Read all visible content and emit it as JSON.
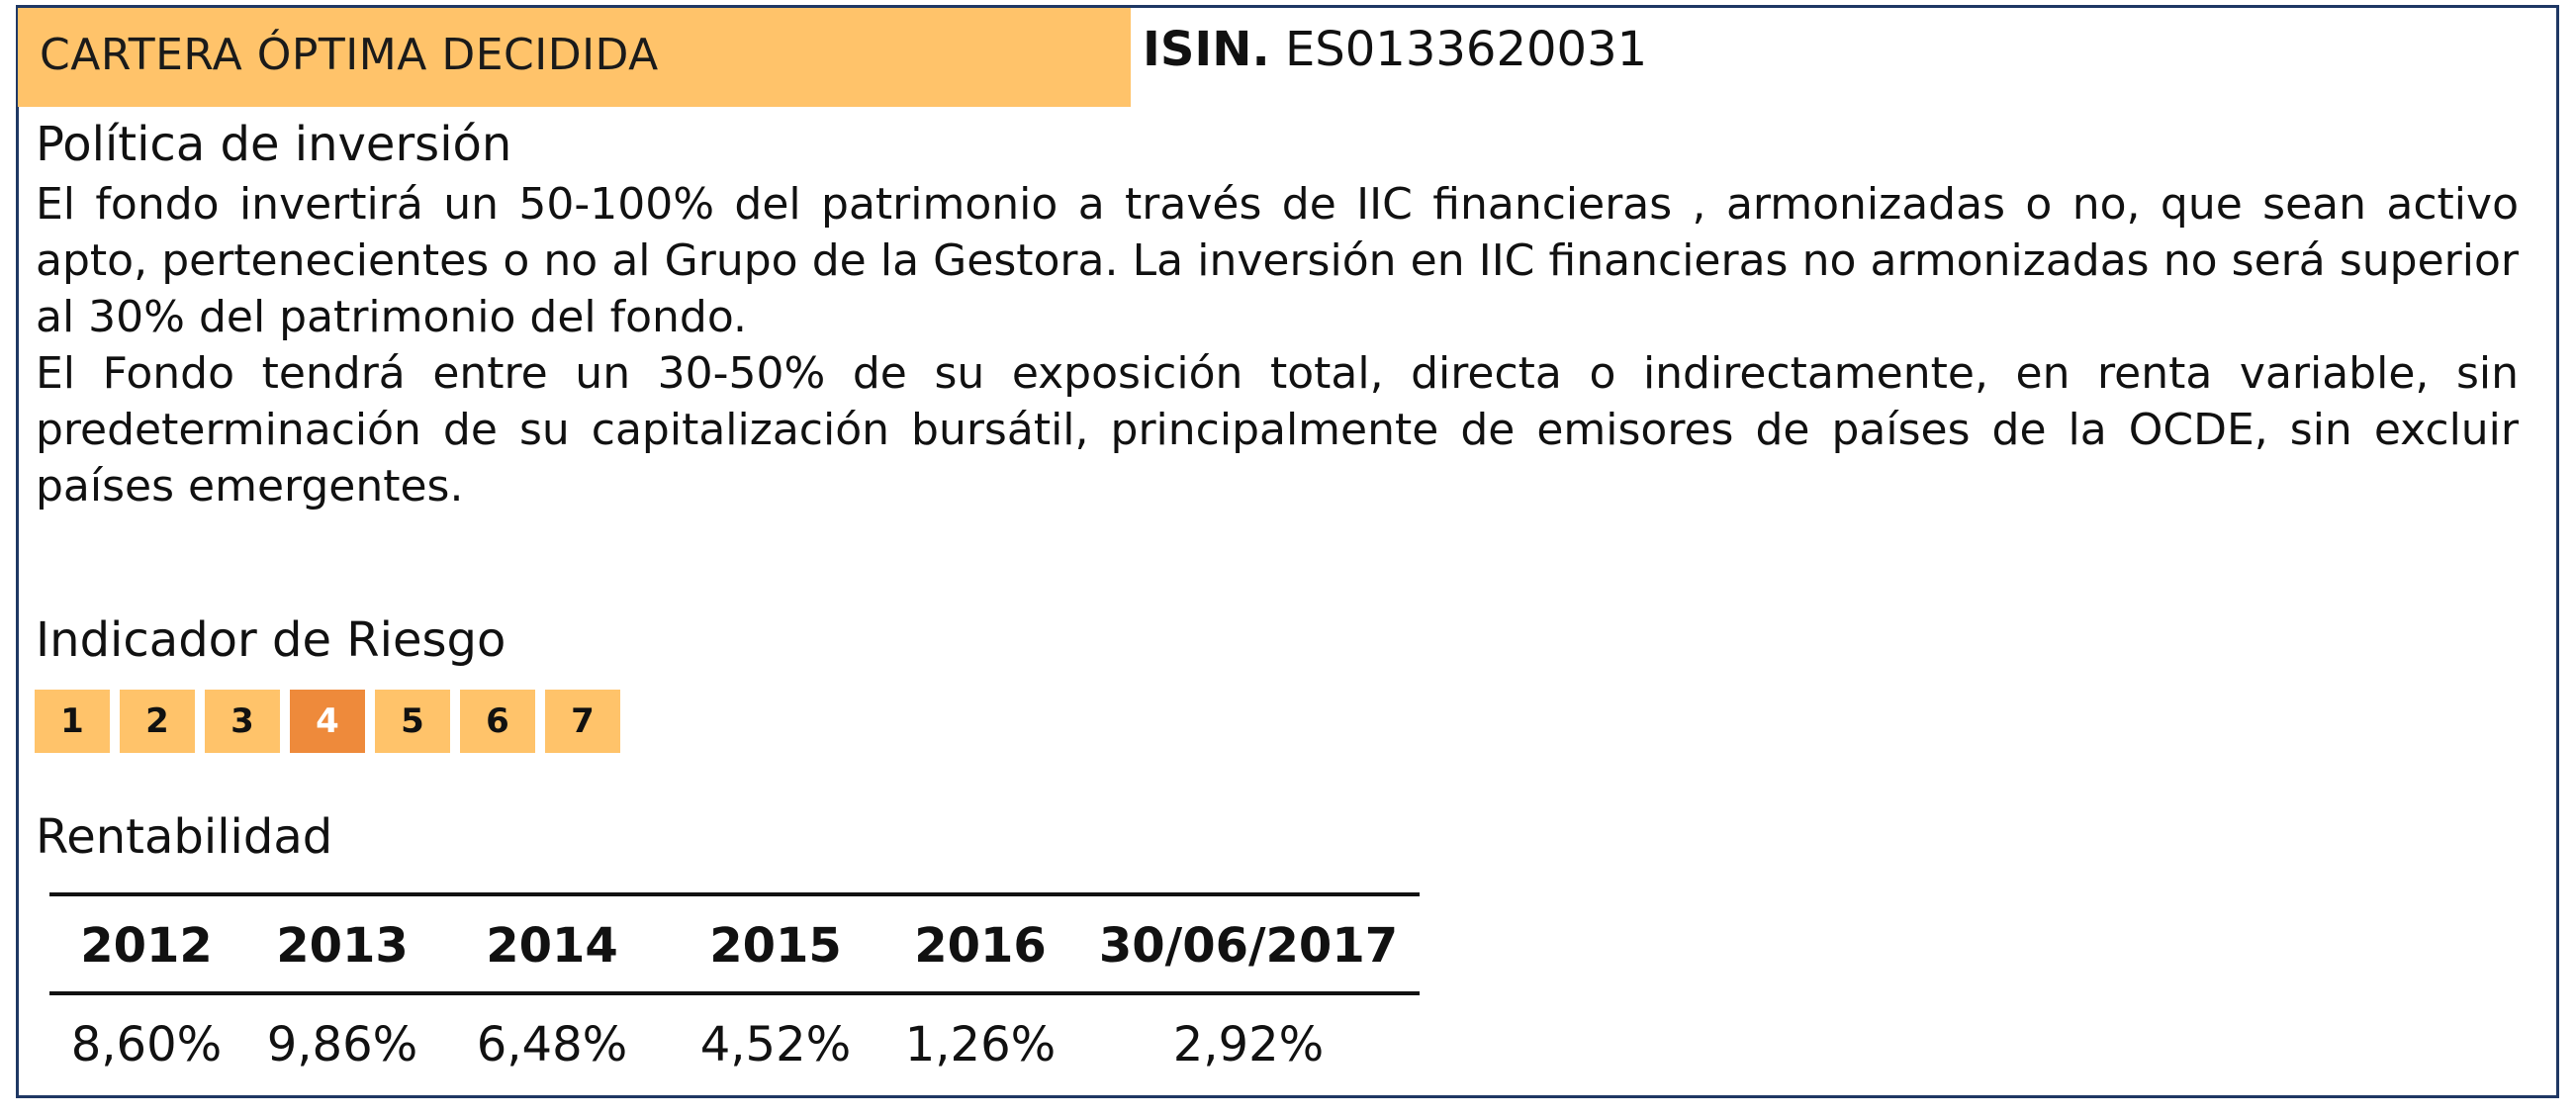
{
  "header": {
    "title": "CARTERA ÓPTIMA DECIDIDA",
    "isin_label": "ISIN.",
    "isin_value": "ES0133620031"
  },
  "policy": {
    "heading": "Política de inversión",
    "paragraph1": "El fondo invertirá un 50-100% del patrimonio a través de IIC financieras , armonizadas o no, que sean activo apto, pertenecientes o no al Grupo de la Gestora. La inversión en IIC financieras no armonizadas no será superior al 30% del patrimonio del fondo.",
    "paragraph2": "El Fondo tendrá entre un 30-50% de su exposición total, directa o indirectamente, en renta variable, sin predeterminación de su capitalización bursátil, principalmente de emisores de países de la OCDE, sin excluir países emergentes."
  },
  "risk": {
    "heading": "Indicador de Riesgo",
    "levels": [
      "1",
      "2",
      "3",
      "4",
      "5",
      "6",
      "7"
    ],
    "selected": "4",
    "color_default": "#ffc36a",
    "color_selected": "#ee8a3b"
  },
  "returns": {
    "heading": "Rentabilidad",
    "columns": [
      "2012",
      "2013",
      "2014",
      "2015",
      "2016",
      "30/06/2017"
    ],
    "values": [
      "8,60%",
      "9,86%",
      "6,48%",
      "4,52%",
      "1,26%",
      "2,92%"
    ]
  }
}
